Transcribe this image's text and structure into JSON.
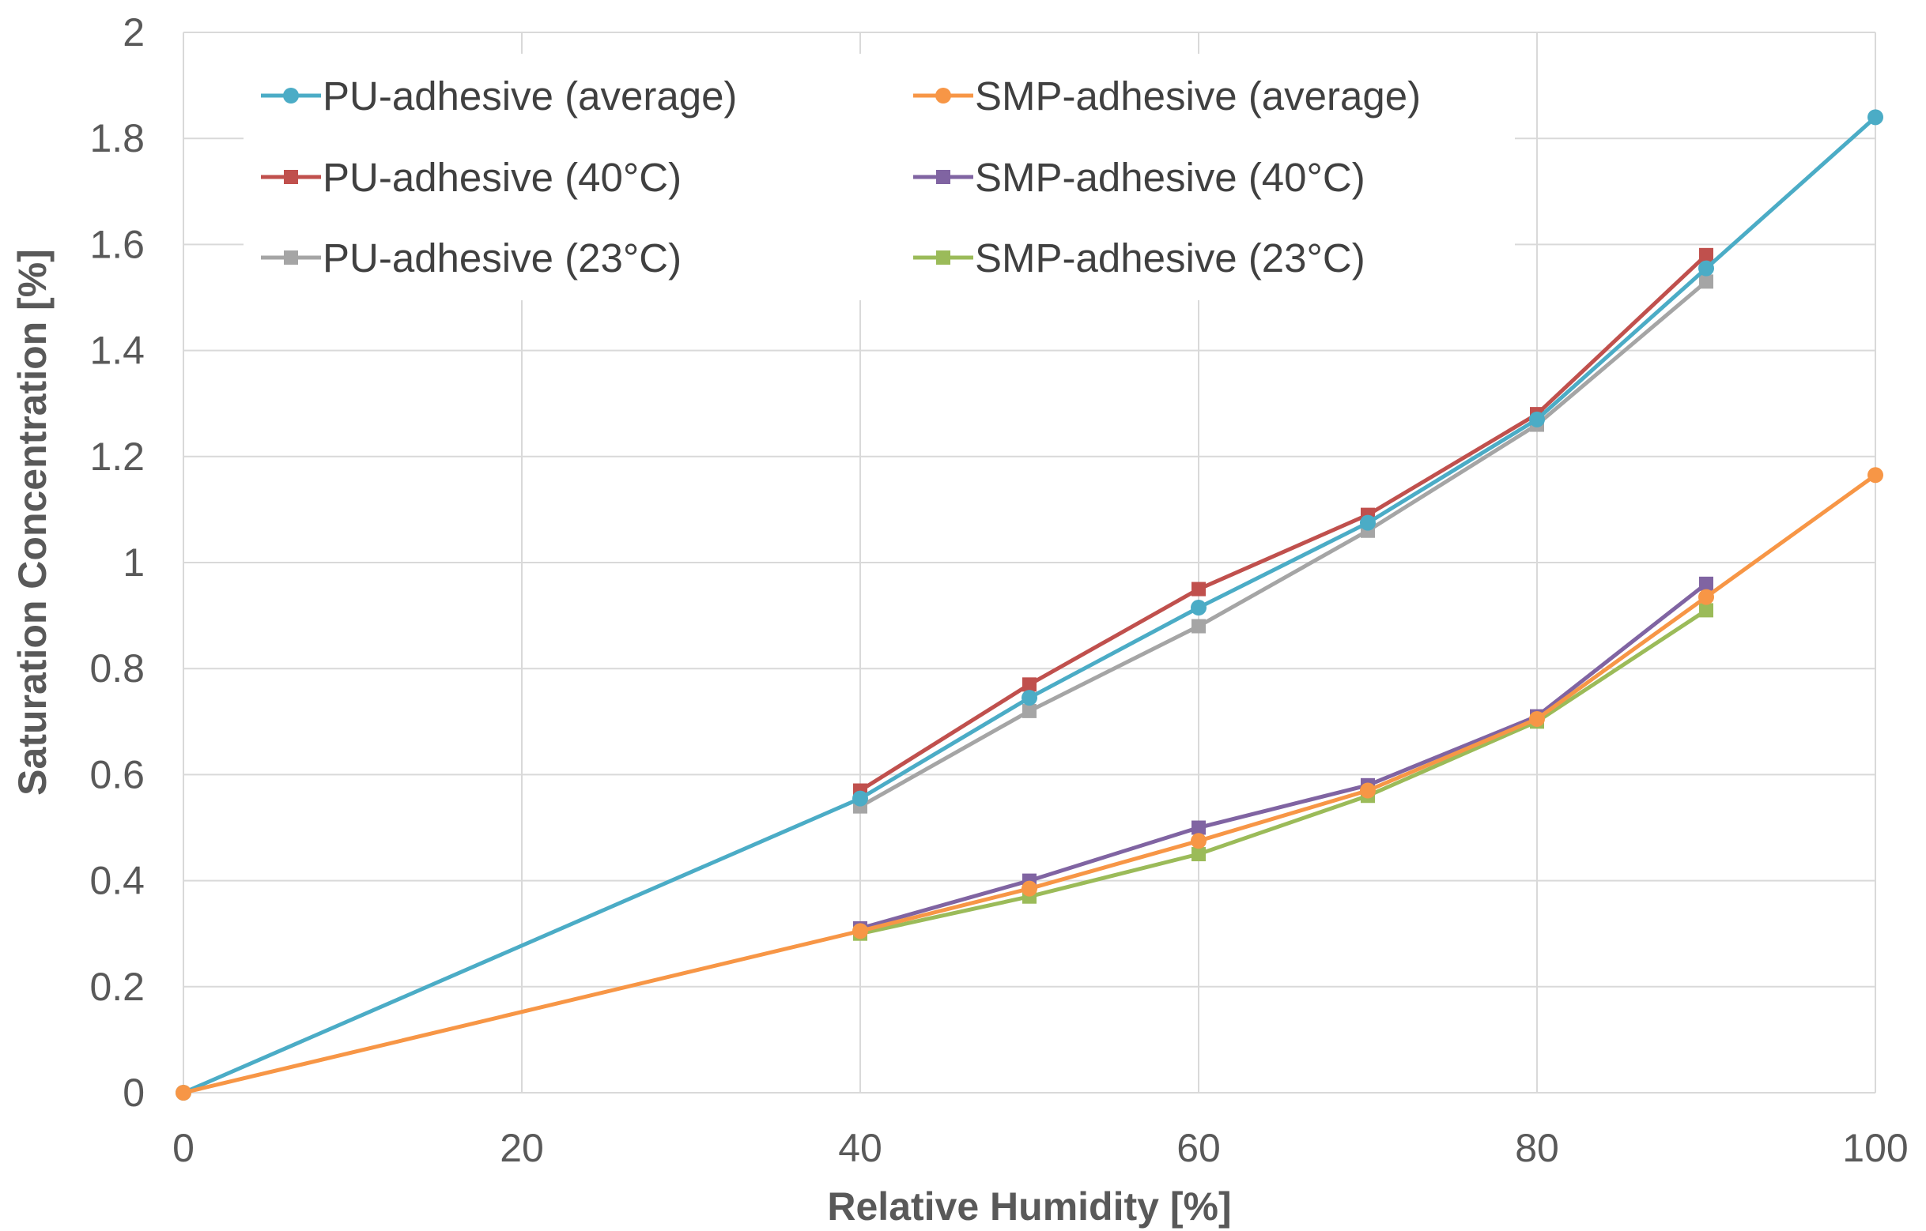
{
  "chart_data": {
    "type": "line",
    "title": "",
    "xlabel": "Relative Humidity [%]",
    "ylabel": "Saturation Concentration [%]",
    "xlim": [
      0,
      100
    ],
    "ylim": [
      0,
      2
    ],
    "x_ticks": [
      0,
      20,
      40,
      60,
      80,
      100
    ],
    "y_ticks": [
      0,
      0.2,
      0.4,
      0.6,
      0.8,
      1,
      1.2,
      1.4,
      1.6,
      1.8,
      2
    ],
    "x_tick_labels": [
      "0",
      "20",
      "40",
      "60",
      "80",
      "100"
    ],
    "y_tick_labels": [
      "0",
      "0.2",
      "0.4",
      "0.6",
      "0.8",
      "1",
      "1.2",
      "1.4",
      "1.6",
      "1.8",
      "2"
    ],
    "grid": true,
    "legend_position": "top-left",
    "series": [
      {
        "name": "PU-adhesive (average)",
        "color": "#4BACC6",
        "marker": "circle",
        "x": [
          0,
          40,
          50,
          60,
          70,
          80,
          90,
          100
        ],
        "y": [
          0,
          0.555,
          0.745,
          0.915,
          1.075,
          1.27,
          1.555,
          1.84
        ]
      },
      {
        "name": "SMP-adhesive (average)",
        "color": "#F79646",
        "marker": "circle",
        "x": [
          0,
          40,
          50,
          60,
          70,
          80,
          90,
          100
        ],
        "y": [
          0,
          0.305,
          0.385,
          0.475,
          0.57,
          0.705,
          0.935,
          1.165
        ]
      },
      {
        "name": "PU-adhesive (40°C)",
        "color": "#C0504D",
        "marker": "square",
        "x": [
          40,
          50,
          60,
          70,
          80,
          90
        ],
        "y": [
          0.57,
          0.77,
          0.95,
          1.09,
          1.28,
          1.58
        ]
      },
      {
        "name": "SMP-adhesive (40°C)",
        "color": "#8064A2",
        "marker": "square",
        "x": [
          40,
          50,
          60,
          70,
          80,
          90
        ],
        "y": [
          0.31,
          0.4,
          0.5,
          0.58,
          0.71,
          0.96
        ]
      },
      {
        "name": "PU-adhesive (23°C)",
        "color": "#A5A5A5",
        "marker": "square",
        "x": [
          40,
          50,
          60,
          70,
          80,
          90
        ],
        "y": [
          0.54,
          0.72,
          0.88,
          1.06,
          1.26,
          1.53
        ]
      },
      {
        "name": "SMP-adhesive (23°C)",
        "color": "#9BBB59",
        "marker": "square",
        "x": [
          40,
          50,
          60,
          70,
          80,
          90
        ],
        "y": [
          0.3,
          0.37,
          0.45,
          0.56,
          0.7,
          0.91
        ]
      }
    ]
  }
}
